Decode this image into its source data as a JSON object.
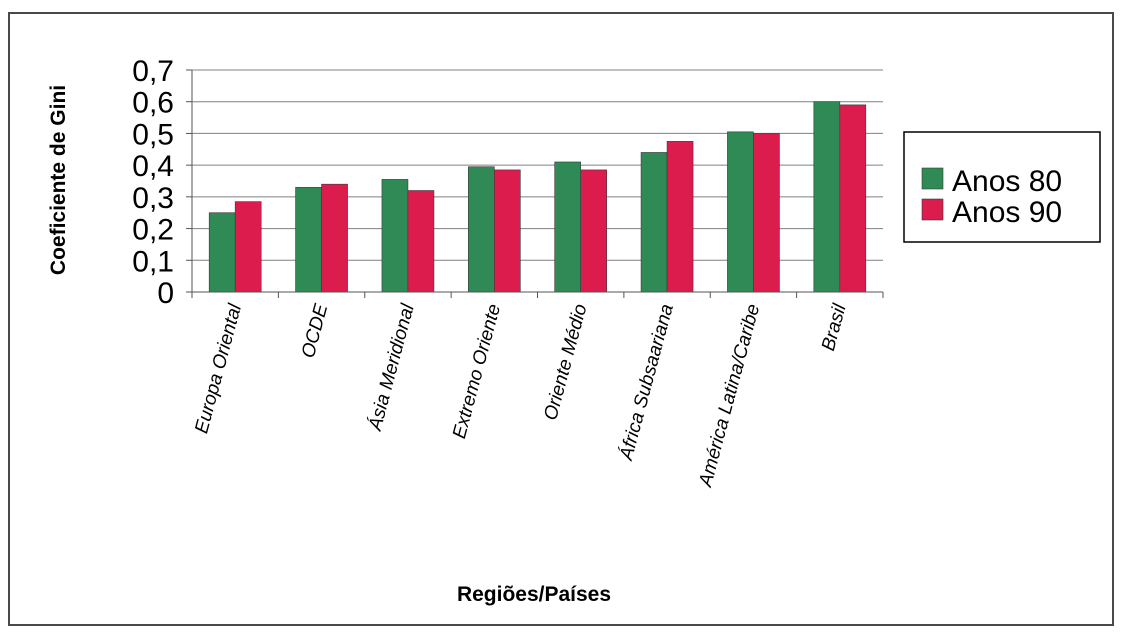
{
  "chart_data": {
    "type": "bar",
    "title": "",
    "xlabel": "Regiões/Países",
    "ylabel": "Coeficiente de Gini",
    "ylim": [
      0,
      0.7
    ],
    "yticks": [
      "0",
      "0,1",
      "0,2",
      "0,3",
      "0,4",
      "0,5",
      "0,6",
      "0,7"
    ],
    "categories": [
      "Europa Oriental",
      "OCDE",
      "Ásia Meridional",
      "Extremo Oriente",
      "Oriente Médio",
      "África Subsaariana",
      "América Latina/Caribe",
      "Brasil"
    ],
    "series": [
      {
        "name": "Anos 80",
        "color": "#2f8a56",
        "values": [
          0.25,
          0.33,
          0.355,
          0.395,
          0.41,
          0.44,
          0.505,
          0.6
        ]
      },
      {
        "name": "Anos 90",
        "color": "#dc1c4c",
        "values": [
          0.285,
          0.34,
          0.32,
          0.385,
          0.385,
          0.475,
          0.5,
          0.59
        ]
      }
    ],
    "grid": true,
    "legend_position": "right"
  }
}
